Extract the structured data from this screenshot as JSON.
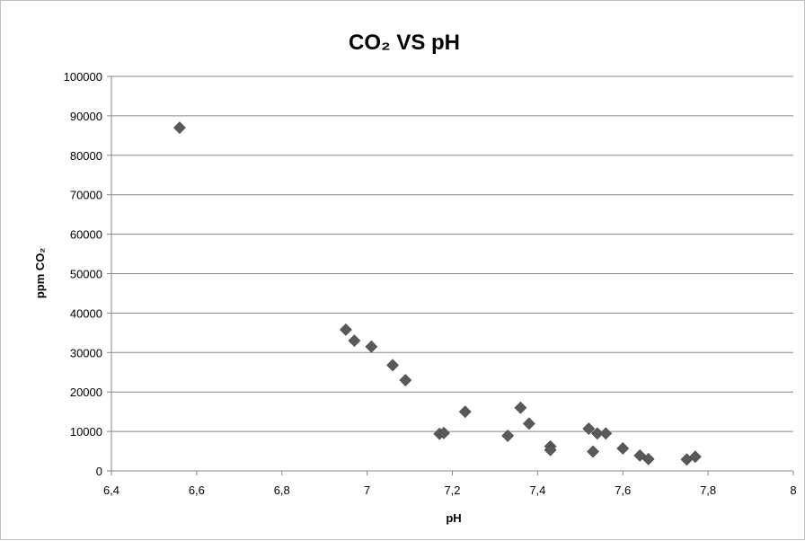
{
  "chart_data": {
    "type": "scatter",
    "title": "CO₂ VS pH",
    "xlabel": "pH",
    "ylabel": "ppm CO₂",
    "xlim": [
      6.4,
      8
    ],
    "ylim": [
      0,
      100000
    ],
    "x_ticks": [
      "6,4",
      "6,6",
      "6,8",
      "7",
      "7,2",
      "7,4",
      "7,6",
      "7,8",
      "8"
    ],
    "x_tick_values": [
      6.4,
      6.6,
      6.8,
      7.0,
      7.2,
      7.4,
      7.6,
      7.8,
      8.0
    ],
    "y_ticks": [
      "0",
      "10000",
      "20000",
      "30000",
      "40000",
      "50000",
      "60000",
      "70000",
      "80000",
      "90000",
      "100000"
    ],
    "y_tick_values": [
      0,
      10000,
      20000,
      30000,
      40000,
      50000,
      60000,
      70000,
      80000,
      90000,
      100000
    ],
    "grid": "horizontal",
    "legend": "none",
    "marker": "diamond",
    "marker_color": "#595959",
    "points": [
      {
        "x": 6.56,
        "y": 87000
      },
      {
        "x": 6.95,
        "y": 35800
      },
      {
        "x": 6.97,
        "y": 33000
      },
      {
        "x": 7.01,
        "y": 31500
      },
      {
        "x": 7.06,
        "y": 26800
      },
      {
        "x": 7.09,
        "y": 23000
      },
      {
        "x": 7.17,
        "y": 9400
      },
      {
        "x": 7.18,
        "y": 9600
      },
      {
        "x": 7.23,
        "y": 15000
      },
      {
        "x": 7.33,
        "y": 8900
      },
      {
        "x": 7.36,
        "y": 16000
      },
      {
        "x": 7.38,
        "y": 12000
      },
      {
        "x": 7.43,
        "y": 6200
      },
      {
        "x": 7.43,
        "y": 5300
      },
      {
        "x": 7.52,
        "y": 10700
      },
      {
        "x": 7.53,
        "y": 4900
      },
      {
        "x": 7.54,
        "y": 9500
      },
      {
        "x": 7.56,
        "y": 9500
      },
      {
        "x": 7.6,
        "y": 5700
      },
      {
        "x": 7.64,
        "y": 3900
      },
      {
        "x": 7.66,
        "y": 3000
      },
      {
        "x": 7.75,
        "y": 2900
      },
      {
        "x": 7.77,
        "y": 3600
      }
    ]
  }
}
